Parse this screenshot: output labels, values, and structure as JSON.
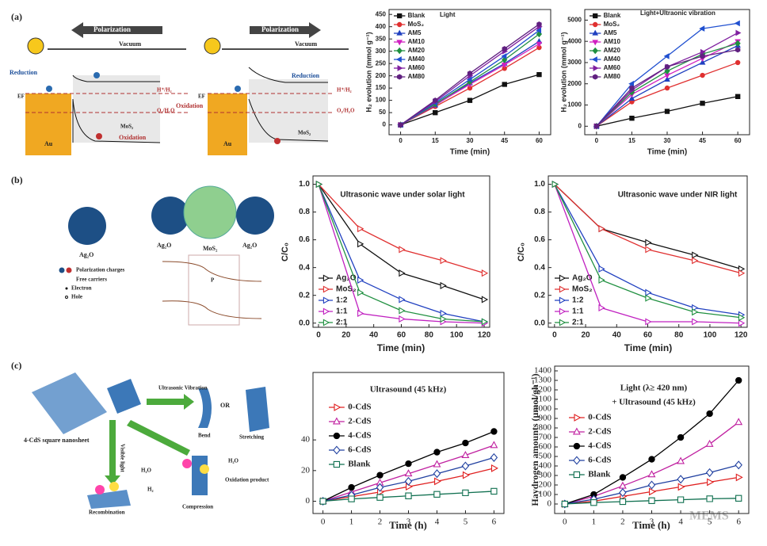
{
  "chart_data": [
    {
      "type": "line",
      "title": "Light",
      "x_label": "Time (min)",
      "y_label": "H₂ evolution (mmol g⁻¹)",
      "x": [
        0,
        15,
        30,
        45,
        60
      ],
      "xlim": [
        -5,
        65
      ],
      "xticks": [
        0,
        15,
        30,
        45,
        60
      ],
      "ylim": [
        -40,
        470
      ],
      "yticks": [
        0,
        50,
        100,
        150,
        200,
        250,
        300,
        350,
        400,
        450
      ],
      "legend": "upper left",
      "series": [
        {
          "name": "Blank",
          "color": "#111111",
          "marker": "square",
          "filled": true,
          "values": [
            0,
            50,
            100,
            165,
            205
          ]
        },
        {
          "name": "MoS₂",
          "color": "#e03030",
          "marker": "circle",
          "filled": true,
          "values": [
            0,
            75,
            150,
            230,
            315
          ]
        },
        {
          "name": "AM5",
          "color": "#2040c0",
          "marker": "triangle",
          "filled": true,
          "values": [
            0,
            80,
            170,
            250,
            340
          ]
        },
        {
          "name": "AM10",
          "color": "#d020c0",
          "marker": "triangle-down",
          "filled": true,
          "values": [
            0,
            82,
            165,
            245,
            330
          ]
        },
        {
          "name": "AM20",
          "color": "#209040",
          "marker": "diamond",
          "filled": true,
          "values": [
            0,
            85,
            175,
            265,
            370
          ]
        },
        {
          "name": "AM40",
          "color": "#2050d0",
          "marker": "triangle-left",
          "filled": true,
          "values": [
            0,
            90,
            185,
            280,
            385
          ]
        },
        {
          "name": "AM60",
          "color": "#8020a0",
          "marker": "triangle-right",
          "filled": true,
          "values": [
            0,
            95,
            200,
            300,
            400
          ]
        },
        {
          "name": "AM80",
          "color": "#602080",
          "marker": "hexagon",
          "filled": true,
          "values": [
            0,
            100,
            210,
            310,
            410
          ]
        }
      ]
    },
    {
      "type": "line",
      "title": "Light+Ultraonic vibration",
      "x_label": "Time (min)",
      "y_label": "H₂ evolution (mmol g⁻¹)",
      "x": [
        0,
        15,
        30,
        45,
        60
      ],
      "xlim": [
        -5,
        65
      ],
      "xticks": [
        0,
        15,
        30,
        45,
        60
      ],
      "ylim": [
        -400,
        5500
      ],
      "yticks": [
        0,
        1000,
        2000,
        3000,
        4000,
        5000
      ],
      "legend": "upper left",
      "series": [
        {
          "name": "Blank",
          "color": "#111111",
          "marker": "square",
          "filled": true,
          "values": [
            0,
            380,
            700,
            1080,
            1400
          ]
        },
        {
          "name": "MoS₂",
          "color": "#e03030",
          "marker": "circle",
          "filled": true,
          "values": [
            0,
            1150,
            1800,
            2400,
            3000
          ]
        },
        {
          "name": "AM5",
          "color": "#2040c0",
          "marker": "triangle",
          "filled": true,
          "values": [
            0,
            1300,
            2200,
            3000,
            3800
          ]
        },
        {
          "name": "AM10",
          "color": "#d020c0",
          "marker": "triangle-down",
          "filled": true,
          "values": [
            0,
            1500,
            2400,
            3200,
            4000
          ]
        },
        {
          "name": "AM20",
          "color": "#209040",
          "marker": "diamond",
          "filled": true,
          "values": [
            0,
            1600,
            2600,
            3400,
            3900
          ]
        },
        {
          "name": "AM40",
          "color": "#2050d0",
          "marker": "triangle-left",
          "filled": true,
          "values": [
            0,
            2000,
            3300,
            4600,
            4850
          ]
        },
        {
          "name": "AM60",
          "color": "#8020a0",
          "marker": "triangle-right",
          "filled": true,
          "values": [
            0,
            1700,
            2800,
            3500,
            4400
          ]
        },
        {
          "name": "AM80",
          "color": "#602080",
          "marker": "hexagon",
          "filled": true,
          "values": [
            0,
            1800,
            2800,
            3300,
            3600
          ]
        }
      ]
    },
    {
      "type": "line",
      "title": "Ultrasonic wave under solar light",
      "x_label": "Time (min)",
      "y_label": "C/C₀",
      "x": [
        0,
        30,
        60,
        90,
        120
      ],
      "xlim": [
        -4,
        124
      ],
      "xticks": [
        0,
        20,
        40,
        60,
        80,
        100,
        120
      ],
      "ylim": [
        -0.03,
        1.06
      ],
      "yticks": [
        {
          "value": 0,
          "label": "0.0"
        },
        {
          "value": 0.2,
          "label": "0.2"
        },
        {
          "value": 0.4,
          "label": "0.4"
        },
        {
          "value": 0.6,
          "label": "0.6"
        },
        {
          "value": 0.8,
          "label": "0.8"
        },
        {
          "value": 1,
          "label": "1.0"
        }
      ],
      "legend": "lower left",
      "series": [
        {
          "name": "Ag₂O",
          "color": "#111111",
          "marker": "triangle-right",
          "filled": false,
          "values": [
            1,
            0.57,
            0.36,
            0.27,
            0.17
          ]
        },
        {
          "name": "MoS₂",
          "color": "#e03030",
          "marker": "triangle-right",
          "filled": false,
          "values": [
            1,
            0.68,
            0.53,
            0.45,
            0.36
          ]
        },
        {
          "name": "1:2",
          "color": "#2040c0",
          "marker": "triangle-right",
          "filled": false,
          "values": [
            1,
            0.31,
            0.17,
            0.07,
            0.01
          ]
        },
        {
          "name": "1:1",
          "color": "#c020c0",
          "marker": "triangle-right",
          "filled": false,
          "values": [
            1,
            0.07,
            0.03,
            0.01,
            0
          ]
        },
        {
          "name": "2:1",
          "color": "#209040",
          "marker": "triangle-right",
          "filled": false,
          "values": [
            1,
            0.22,
            0.09,
            0.03,
            0.01
          ]
        }
      ]
    },
    {
      "type": "line",
      "title": "Ultrasonic wave under NIR light",
      "x_label": "Time (min)",
      "y_label": "C/C₀",
      "x": [
        0,
        30,
        60,
        90,
        120
      ],
      "xlim": [
        -4,
        124
      ],
      "xticks": [
        0,
        20,
        40,
        60,
        80,
        100,
        120
      ],
      "ylim": [
        -0.03,
        1.06
      ],
      "yticks": [
        {
          "value": 0,
          "label": "0.0"
        },
        {
          "value": 0.2,
          "label": "0.2"
        },
        {
          "value": 0.4,
          "label": "0.4"
        },
        {
          "value": 0.6,
          "label": "0.6"
        },
        {
          "value": 0.8,
          "label": "0.8"
        },
        {
          "value": 1,
          "label": "1.0"
        }
      ],
      "legend": "lower left",
      "series": [
        {
          "name": "Ag₂O",
          "color": "#111111",
          "marker": "triangle-right",
          "filled": false,
          "values": [
            1,
            0.68,
            0.58,
            0.49,
            0.39
          ]
        },
        {
          "name": "MoS₂",
          "color": "#e03030",
          "marker": "triangle-right",
          "filled": false,
          "values": [
            1,
            0.68,
            0.53,
            0.45,
            0.36
          ]
        },
        {
          "name": "1:2",
          "color": "#2040c0",
          "marker": "triangle-right",
          "filled": false,
          "values": [
            1,
            0.39,
            0.22,
            0.11,
            0.06
          ]
        },
        {
          "name": "1:1",
          "color": "#c020c0",
          "marker": "triangle-right",
          "filled": false,
          "values": [
            1,
            0.11,
            0.01,
            0.01,
            0
          ]
        },
        {
          "name": "2:1",
          "color": "#209040",
          "marker": "triangle-right",
          "filled": false,
          "values": [
            1,
            0.31,
            0.18,
            0.08,
            0.04
          ]
        }
      ]
    },
    {
      "type": "line",
      "title": "Ultrasound (45 kHz)",
      "x_label": "Time (h)",
      "x": [
        0,
        1,
        2,
        3,
        4,
        5,
        6
      ],
      "xlim": [
        -0.35,
        6.35
      ],
      "xticks": [
        0,
        1,
        2,
        3,
        4,
        5,
        6
      ],
      "ylim": [
        -8,
        84
      ],
      "yticks": [
        0,
        20,
        40
      ],
      "legend": "center left",
      "series": [
        {
          "name": "0-CdS",
          "color": "#e02020",
          "marker": "triangle-right",
          "filled": false,
          "values": [
            0,
            3,
            6,
            9.5,
            13,
            17,
            21.5
          ]
        },
        {
          "name": "2-CdS",
          "color": "#c020a0",
          "marker": "triangle",
          "filled": false,
          "values": [
            0,
            6,
            12,
            18,
            24,
            30,
            36.5
          ]
        },
        {
          "name": "4-CdS",
          "color": "#000000",
          "marker": "circle",
          "filled": true,
          "values": [
            0,
            9,
            17,
            24.5,
            32,
            38,
            45.5
          ]
        },
        {
          "name": "6-CdS",
          "color": "#2040a0",
          "marker": "diamond",
          "filled": false,
          "values": [
            0,
            4,
            9,
            13,
            18,
            23,
            28.5
          ]
        },
        {
          "name": "Blank",
          "color": "#107050",
          "marker": "square",
          "filled": false,
          "values": [
            0,
            1.5,
            2.5,
            3.5,
            4.5,
            5.5,
            6.5
          ]
        }
      ]
    },
    {
      "type": "line",
      "title": "Light (λ≥ 420 nm)",
      "subtitle": "+ Ultrasound (45 kHz)",
      "x_label": "Time (h)",
      "y_label": "Haydrogen amounts (μmol/gh⁻¹)",
      "x": [
        0,
        1,
        2,
        3,
        4,
        5,
        6
      ],
      "xlim": [
        -0.35,
        6.35
      ],
      "xticks": [
        0,
        1,
        2,
        3,
        4,
        5,
        6
      ],
      "ylim": [
        -100,
        1450
      ],
      "yticks": [
        0,
        100,
        200,
        300,
        400,
        500,
        600,
        700,
        800,
        900,
        1000,
        1100,
        1200,
        1300,
        1400
      ],
      "legend": "center left",
      "series": [
        {
          "name": "0-CdS",
          "color": "#e02020",
          "marker": "triangle-right",
          "filled": false,
          "values": [
            0,
            30,
            80,
            130,
            180,
            230,
            280
          ]
        },
        {
          "name": "2-CdS",
          "color": "#c020a0",
          "marker": "triangle",
          "filled": false,
          "values": [
            0,
            80,
            190,
            310,
            450,
            630,
            860
          ]
        },
        {
          "name": "4-CdS",
          "color": "#000000",
          "marker": "circle",
          "filled": true,
          "values": [
            0,
            100,
            280,
            470,
            700,
            950,
            1300
          ]
        },
        {
          "name": "6-CdS",
          "color": "#2040a0",
          "marker": "diamond",
          "filled": false,
          "values": [
            0,
            50,
            120,
            200,
            260,
            330,
            410
          ]
        },
        {
          "name": "Blank",
          "color": "#107050",
          "marker": "square",
          "filled": false,
          "values": [
            0,
            15,
            25,
            35,
            45,
            55,
            60
          ]
        }
      ]
    }
  ],
  "diagram_texts": [
    "(a)",
    "(b)",
    "(c)",
    "Polarization",
    "Vacuum",
    "Polarization",
    "Vacuum",
    "Reduction",
    "EF",
    "H⁺/H₂",
    "O₂/H₂O",
    "MoS₂",
    "Au",
    "Oxidation",
    "Reduction",
    "EF",
    "H⁺/H₂",
    "Oxidation",
    "O₂/H₂O",
    "MoS₂",
    "Au",
    "Ag₂O",
    "Ag₂O",
    "MoS₂",
    "Ag₂O",
    "Polarization charges",
    "Free carriers",
    "Electron",
    "Hole",
    "P",
    "4-CdS square nanosheet",
    "Ultrasonic Vibration",
    "Bend",
    "OR",
    "Stretching",
    "Visible light",
    "Recombination",
    "Compression",
    "H₂O",
    "Oxidation product",
    "H₂O",
    "H₂",
    "MEMS"
  ]
}
